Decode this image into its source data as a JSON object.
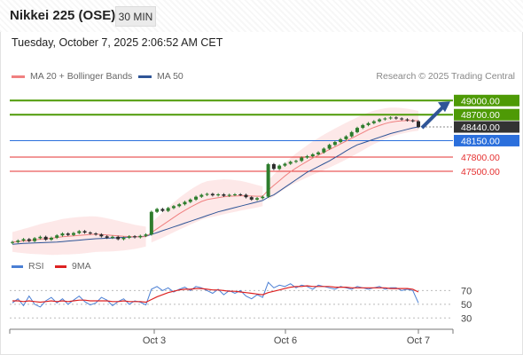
{
  "header": {
    "title": "Nikkei 225 (OSE)",
    "timeframe": "30 MIN",
    "datetime": "Tuesday, October 7, 2025 2:06:52 AM CET"
  },
  "legend": {
    "ma20_label": "MA 20 + Bollinger Bands",
    "ma50_label": "MA 50",
    "copyright": "Research © 2025 Trading Central"
  },
  "rsi_legend": {
    "rsi_label": "RSI",
    "ma_label": "9MA"
  },
  "colors": {
    "resistance": "#4e9a06",
    "pivot": "#2b6fdc",
    "support": "#e53030",
    "last_price_bg": "#333333",
    "ma20": "#f08080",
    "ma50": "#2f5597",
    "bollinger": "#fde2e2",
    "rsi": "#4a7fd4",
    "rsi_ma": "#dd2222",
    "arrow": "#2f5597"
  },
  "chart_data": {
    "type": "candlestick",
    "x_ticks": [
      "Oct 3",
      "Oct 6",
      "Oct 7"
    ],
    "ylim": [
      45900,
      49250
    ],
    "levels": [
      {
        "value": 49000.0,
        "label": "49000.00",
        "kind": "resistance"
      },
      {
        "value": 48700.0,
        "label": "48700.00",
        "kind": "resistance"
      },
      {
        "value": 48440.0,
        "label": "48440.00",
        "kind": "last"
      },
      {
        "value": 48150.0,
        "label": "48150.00",
        "kind": "pivot"
      },
      {
        "value": 47800.0,
        "label": "47800.00",
        "kind": "support"
      },
      {
        "value": 47500.0,
        "label": "47500.00",
        "kind": "support"
      }
    ],
    "closes": [
      46000,
      46030,
      46060,
      46020,
      46080,
      46110,
      46050,
      46090,
      46140,
      46180,
      46150,
      46190,
      46230,
      46200,
      46180,
      46160,
      46120,
      46090,
      46110,
      46060,
      46090,
      46120,
      46100,
      46130,
      46160,
      46640,
      46700,
      46660,
      46720,
      46760,
      46800,
      46850,
      46900,
      46960,
      47000,
      47020,
      46990,
      47010,
      46980,
      47000,
      47010,
      47000,
      46950,
      46900,
      46930,
      46960,
      47650,
      47550,
      47620,
      47660,
      47700,
      47720,
      47790,
      47820,
      47860,
      47900,
      47980,
      48060,
      48120,
      48180,
      48240,
      48330,
      48420,
      48480,
      48520,
      48560,
      48600,
      48620,
      48640,
      48620,
      48600,
      48580,
      48560,
      48440
    ],
    "ma50": [
      45950,
      45960,
      45970,
      45975,
      45980,
      45985,
      45990,
      45995,
      46000,
      46010,
      46020,
      46030,
      46040,
      46050,
      46060,
      46070,
      46075,
      46080,
      46085,
      46090,
      46100,
      46105,
      46110,
      46115,
      46120,
      46160,
      46200,
      46240,
      46280,
      46320,
      46360,
      46400,
      46440,
      46480,
      46520,
      46560,
      46600,
      46640,
      46670,
      46700,
      46730,
      46760,
      46790,
      46820,
      46850,
      46880,
      46950,
      47000,
      47080,
      47160,
      47240,
      47320,
      47400,
      47480,
      47540,
      47600,
      47660,
      47720,
      47790,
      47860,
      47930,
      48000,
      48060,
      48100,
      48140,
      48180,
      48220,
      48260,
      48300,
      48330,
      48360,
      48390,
      48420,
      48440
    ],
    "ma20": [
      46000,
      46010,
      46020,
      46030,
      46045,
      46060,
      46070,
      46080,
      46095,
      46110,
      46120,
      46130,
      46140,
      46150,
      46160,
      46165,
      46160,
      46150,
      46140,
      46130,
      46120,
      46115,
      46110,
      46110,
      46115,
      46200,
      46280,
      46360,
      46440,
      46520,
      46600,
      46670,
      46740,
      46800,
      46860,
      46900,
      46920,
      46940,
      46960,
      46970,
      46975,
      46980,
      46980,
      46975,
      46970,
      46970,
      47100,
      47200,
      47300,
      47400,
      47490,
      47570,
      47640,
      47710,
      47780,
      47840,
      47900,
      47960,
      48020,
      48080,
      48140,
      48200,
      48260,
      48320,
      48380,
      48430,
      48470,
      48510,
      48540,
      48560,
      48570,
      48575,
      48575,
      48570
    ],
    "rsi": [
      52,
      58,
      48,
      62,
      50,
      46,
      55,
      60,
      52,
      58,
      50,
      56,
      62,
      54,
      49,
      52,
      60,
      56,
      48,
      54,
      58,
      50,
      55,
      53,
      49,
      72,
      76,
      70,
      74,
      68,
      72,
      75,
      70,
      76,
      74,
      70,
      66,
      72,
      64,
      70,
      66,
      70,
      62,
      58,
      64,
      60,
      82,
      74,
      78,
      76,
      80,
      74,
      78,
      76,
      72,
      78,
      76,
      74,
      72,
      76,
      74,
      72,
      76,
      74,
      72,
      74,
      76,
      72,
      74,
      74,
      70,
      72,
      70,
      52
    ],
    "rsi_ma": [
      55,
      55,
      54,
      55,
      54,
      53,
      54,
      55,
      54,
      55,
      54,
      55,
      56,
      56,
      55,
      55,
      55,
      55,
      54,
      54,
      55,
      54,
      54,
      54,
      53,
      57,
      61,
      64,
      67,
      69,
      71,
      72,
      72,
      73,
      73,
      72,
      71,
      71,
      70,
      69,
      69,
      68,
      67,
      66,
      65,
      64,
      67,
      69,
      71,
      73,
      75,
      76,
      76,
      77,
      76,
      76,
      76,
      76,
      75,
      75,
      75,
      74,
      74,
      74,
      74,
      74,
      74,
      74,
      73,
      73,
      73,
      73,
      72,
      68
    ],
    "rsi_levels": [
      70,
      50,
      30
    ]
  }
}
